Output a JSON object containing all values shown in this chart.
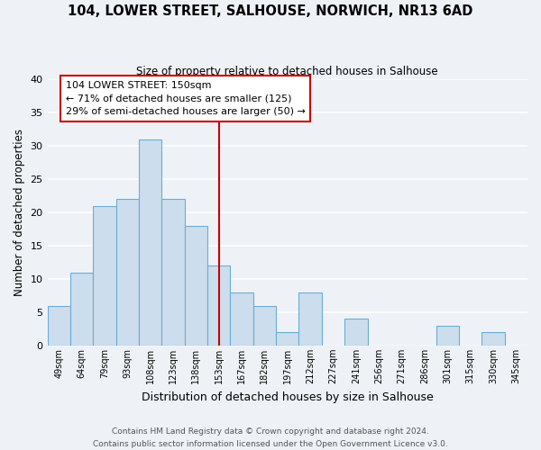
{
  "title": "104, LOWER STREET, SALHOUSE, NORWICH, NR13 6AD",
  "subtitle": "Size of property relative to detached houses in Salhouse",
  "xlabel": "Distribution of detached houses by size in Salhouse",
  "ylabel": "Number of detached properties",
  "bar_labels": [
    "49sqm",
    "64sqm",
    "79sqm",
    "93sqm",
    "108sqm",
    "123sqm",
    "138sqm",
    "153sqm",
    "167sqm",
    "182sqm",
    "197sqm",
    "212sqm",
    "227sqm",
    "241sqm",
    "256sqm",
    "271sqm",
    "286sqm",
    "301sqm",
    "315sqm",
    "330sqm",
    "345sqm"
  ],
  "bar_values": [
    6,
    11,
    21,
    22,
    31,
    22,
    18,
    12,
    8,
    6,
    2,
    8,
    0,
    4,
    0,
    0,
    0,
    3,
    0,
    2,
    0
  ],
  "bar_color": "#ccdded",
  "bar_edge_color": "#6aadd5",
  "ylim": [
    0,
    40
  ],
  "yticks": [
    0,
    5,
    10,
    15,
    20,
    25,
    30,
    35,
    40
  ],
  "vline_x": 7.5,
  "vline_color": "#cc0000",
  "annotation_title": "104 LOWER STREET: 150sqm",
  "annotation_line1": "← 71% of detached houses are smaller (125)",
  "annotation_line2": "29% of semi-detached houses are larger (50) →",
  "annotation_box_color": "#ffffff",
  "annotation_box_edge": "#cc0000",
  "footer1": "Contains HM Land Registry data © Crown copyright and database right 2024.",
  "footer2": "Contains public sector information licensed under the Open Government Licence v3.0.",
  "background_color": "#eef2f7",
  "grid_color": "#ffffff",
  "plot_bg_color": "#eef2f7"
}
